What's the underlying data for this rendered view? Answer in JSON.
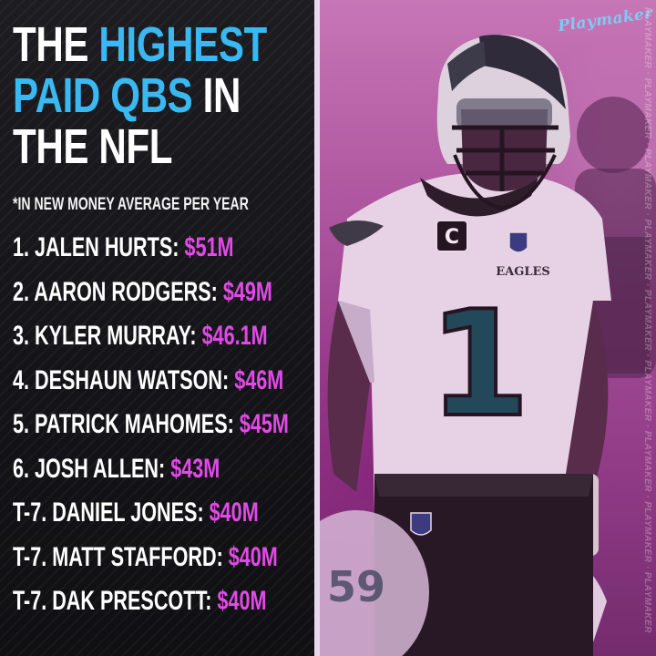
{
  "title": {
    "line1": {
      "white": "THE ",
      "blue": "HIGHEST"
    },
    "line2": {
      "blue": "PAID QBS",
      "white": " IN"
    },
    "line3": {
      "white": "THE NFL"
    }
  },
  "subtitle": "*IN NEW MONEY AVERAGE PER YEAR",
  "rankings": [
    {
      "label": "1. JALEN HURTS: ",
      "amount": "$51M"
    },
    {
      "label": "2. AARON RODGERS: ",
      "amount": "$49M"
    },
    {
      "label": "3. KYLER MURRAY: ",
      "amount": "$46.1M"
    },
    {
      "label": "4. DESHAUN WATSON: ",
      "amount": "$46M"
    },
    {
      "label": "5. PATRICK MAHOMES: ",
      "amount": "$45M"
    },
    {
      "label": "6. JOSH ALLEN: ",
      "amount": "$43M"
    },
    {
      "label": "T-7. DANIEL JONES: ",
      "amount": "$40M"
    },
    {
      "label": "T-7. MATT STAFFORD: ",
      "amount": "$40M"
    },
    {
      "label": "T-7. DAK PRESCOTT: ",
      "amount": "$40M"
    }
  ],
  "brand": "Playmaker",
  "watermark": "PLAYMAKER · PLAYMAKER · PLAYMAKER · PLAYMAKER · PLAYMAKER · PLAYMAKER · PLAYMAKER · PLAYMAKER · PLAYMAKER",
  "jersey": {
    "number": "1",
    "patch": "C",
    "wordmark": "EAGLES",
    "shield": "NFL"
  },
  "colors": {
    "blue_accent": "#39b8f2",
    "pink_accent": "#e24ae8",
    "panel_dark": "#141418",
    "photo_tint": "#a9569c"
  }
}
